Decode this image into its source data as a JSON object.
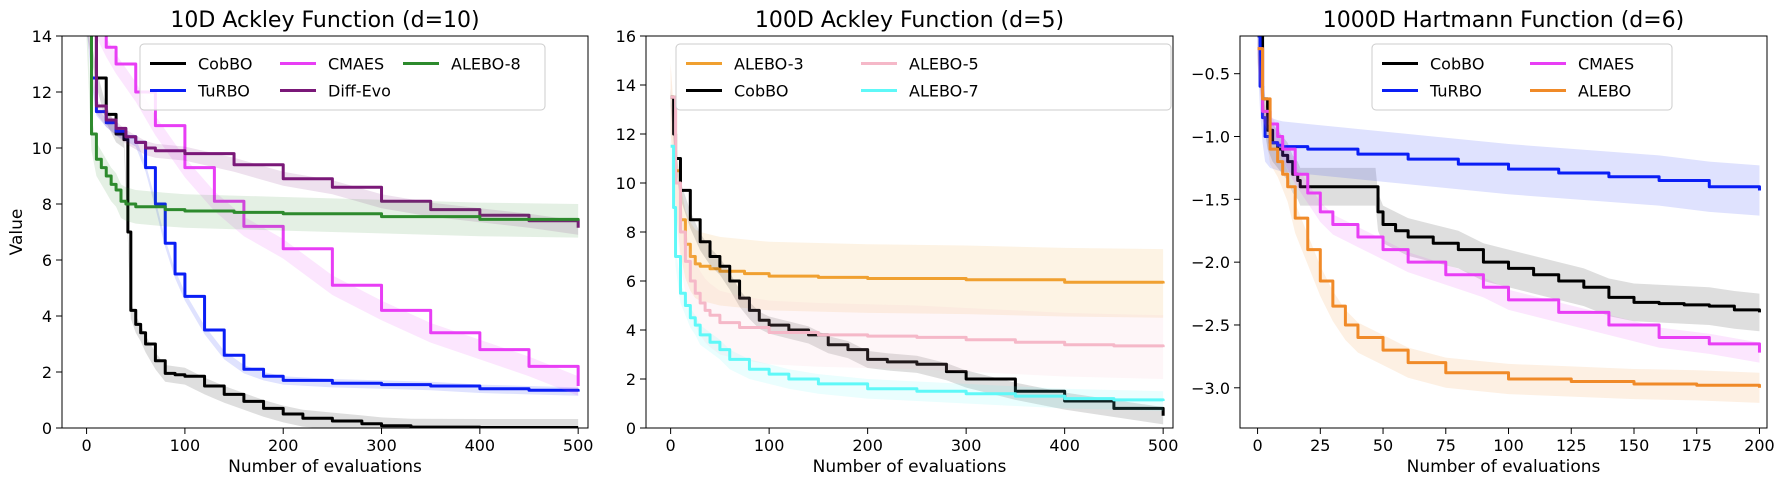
{
  "chart_data": [
    {
      "type": "line",
      "title": "10D Ackley Function (d=10)",
      "xlabel": "Number of evaluations",
      "ylabel": "Value",
      "xlim": [
        -25,
        510
      ],
      "ylim": [
        0,
        14
      ],
      "xticks": [
        0,
        100,
        200,
        300,
        400,
        500
      ],
      "yticks": [
        0,
        2,
        4,
        6,
        8,
        10,
        12,
        14
      ],
      "legend_cols": 3,
      "legend_position": "top-right",
      "series": [
        {
          "name": "CobBO",
          "color": "#000000",
          "band": 0.3,
          "x": [
            0,
            10,
            20,
            30,
            38,
            42,
            45,
            50,
            55,
            60,
            70,
            80,
            90,
            100,
            120,
            140,
            160,
            180,
            200,
            220,
            250,
            280,
            300,
            330,
            400,
            500
          ],
          "y": [
            14.5,
            12.5,
            11.2,
            10.5,
            10.3,
            7,
            4.2,
            3.7,
            3.4,
            3.0,
            2.4,
            1.95,
            1.9,
            1.85,
            1.5,
            1.2,
            0.95,
            0.7,
            0.5,
            0.35,
            0.25,
            0.15,
            0.08,
            0.03,
            0.02,
            0.02
          ]
        },
        {
          "name": "TuRBO",
          "color": "#0a1ef5",
          "band": 0.15,
          "x": [
            0,
            5,
            10,
            20,
            30,
            40,
            50,
            60,
            70,
            80,
            90,
            100,
            120,
            140,
            160,
            180,
            200,
            250,
            300,
            350,
            400,
            450,
            500
          ],
          "y": [
            14.5,
            12.5,
            11.3,
            10.9,
            10.6,
            10.4,
            10.2,
            9.3,
            8.0,
            6.6,
            5.5,
            4.7,
            3.5,
            2.6,
            2.1,
            1.85,
            1.7,
            1.6,
            1.55,
            1.5,
            1.4,
            1.35,
            1.3
          ]
        },
        {
          "name": "CMAES",
          "color": "#e83ef5",
          "band": 0.35,
          "x": [
            0,
            10,
            20,
            30,
            50,
            70,
            100,
            130,
            160,
            200,
            250,
            300,
            350,
            400,
            450,
            500
          ],
          "y": [
            15,
            14.3,
            13.6,
            13.0,
            12.0,
            10.8,
            9.3,
            8.1,
            7.2,
            6.4,
            5.1,
            4.2,
            3.4,
            2.8,
            2.2,
            1.5
          ]
        },
        {
          "name": "Diff-Evo",
          "color": "#7a1878",
          "band": 0.25,
          "x": [
            0,
            10,
            20,
            30,
            40,
            50,
            60,
            70,
            100,
            150,
            200,
            250,
            300,
            350,
            400,
            450,
            500
          ],
          "y": [
            14.5,
            11.5,
            11.0,
            10.7,
            10.4,
            10.2,
            10.0,
            9.9,
            9.8,
            9.4,
            8.9,
            8.6,
            8.1,
            7.8,
            7.6,
            7.4,
            7.15
          ]
        },
        {
          "name": "ALEBO-8",
          "color": "#2d8a2d",
          "band": 0.6,
          "x": [
            0,
            5,
            10,
            15,
            20,
            25,
            30,
            35,
            40,
            50,
            80,
            100,
            150,
            200,
            300,
            400,
            500
          ],
          "y": [
            14.5,
            10.5,
            9.6,
            9.3,
            9.0,
            8.7,
            8.5,
            8.1,
            8.0,
            7.9,
            7.8,
            7.75,
            7.7,
            7.65,
            7.55,
            7.45,
            7.4
          ]
        }
      ]
    },
    {
      "type": "line",
      "title": "100D Ackley Function (d=5)",
      "xlabel": "Number of evaluations",
      "ylabel": "",
      "xlim": [
        -25,
        510
      ],
      "ylim": [
        0,
        16
      ],
      "xticks": [
        0,
        100,
        200,
        300,
        400,
        500
      ],
      "yticks": [
        0,
        2,
        4,
        6,
        8,
        10,
        12,
        14,
        16
      ],
      "legend_cols": 3,
      "legend_position": "top",
      "series": [
        {
          "name": "ALEBO-3",
          "color": "#f0a030",
          "band": 1.4,
          "x": [
            0,
            5,
            10,
            15,
            20,
            25,
            30,
            40,
            50,
            75,
            100,
            150,
            200,
            300,
            400,
            500
          ],
          "y": [
            13.5,
            10.5,
            8.5,
            7.5,
            7.0,
            6.7,
            6.6,
            6.5,
            6.4,
            6.3,
            6.2,
            6.15,
            6.1,
            6.05,
            5.95,
            5.9
          ]
        },
        {
          "name": "CobBO",
          "color": "#000000",
          "band": 0.35,
          "x": [
            0,
            3,
            5,
            10,
            20,
            30,
            40,
            50,
            60,
            70,
            80,
            90,
            100,
            120,
            140,
            160,
            180,
            200,
            220,
            250,
            280,
            300,
            350,
            400,
            450,
            500
          ],
          "y": [
            13.5,
            12.0,
            11.0,
            9.7,
            8.5,
            7.6,
            7.0,
            6.6,
            6.0,
            5.3,
            4.8,
            4.4,
            4.2,
            4.0,
            3.8,
            3.4,
            3.2,
            2.8,
            2.7,
            2.6,
            2.3,
            2.0,
            1.5,
            1.1,
            0.8,
            0.5
          ]
        },
        {
          "name": "ALEBO-5",
          "color": "#f5b8c8",
          "band": 1.3,
          "x": [
            0,
            5,
            10,
            15,
            20,
            25,
            30,
            35,
            40,
            50,
            70,
            100,
            150,
            200,
            250,
            300,
            350,
            400,
            450,
            500
          ],
          "y": [
            13.5,
            10.0,
            8.0,
            6.8,
            6.0,
            5.5,
            5.1,
            4.8,
            4.6,
            4.3,
            4.1,
            3.9,
            3.8,
            3.75,
            3.7,
            3.6,
            3.5,
            3.4,
            3.35,
            3.3
          ]
        },
        {
          "name": "ALEBO-7",
          "color": "#5ff8f8",
          "band": 0.4,
          "x": [
            0,
            3,
            5,
            10,
            15,
            20,
            25,
            30,
            40,
            50,
            60,
            80,
            100,
            120,
            150,
            200,
            250,
            300,
            350,
            400,
            450,
            500
          ],
          "y": [
            11.5,
            9.0,
            7.0,
            5.5,
            5.0,
            4.5,
            4.2,
            3.8,
            3.5,
            3.2,
            2.8,
            2.4,
            2.2,
            2.0,
            1.8,
            1.6,
            1.5,
            1.4,
            1.3,
            1.2,
            1.15,
            1.1
          ]
        }
      ]
    },
    {
      "type": "line",
      "title": "1000D Hartmann Function (d=6)",
      "xlabel": "Number of evaluations",
      "ylabel": "",
      "xlim": [
        -7,
        203
      ],
      "ylim": [
        -3.32,
        -0.2
      ],
      "xticks": [
        0,
        25,
        50,
        75,
        100,
        125,
        150,
        175,
        200
      ],
      "yticks": [
        -3.0,
        -2.5,
        -2.0,
        -1.5,
        -1.0,
        -0.5
      ],
      "legend_cols": 2,
      "legend_position": "top",
      "series": [
        {
          "name": "CobBO",
          "color": "#000000",
          "band": 0.15,
          "x": [
            0,
            2,
            4,
            6,
            8,
            10,
            12,
            14,
            16,
            17,
            20,
            25,
            30,
            35,
            40,
            47,
            48,
            50,
            55,
            60,
            70,
            80,
            90,
            100,
            110,
            120,
            130,
            140,
            150,
            160,
            170,
            180,
            190,
            200
          ],
          "y": [
            -0.2,
            -0.7,
            -0.95,
            -1.05,
            -1.1,
            -1.15,
            -1.2,
            -1.3,
            -1.35,
            -1.4,
            -1.4,
            -1.4,
            -1.4,
            -1.4,
            -1.4,
            -1.4,
            -1.6,
            -1.7,
            -1.75,
            -1.8,
            -1.85,
            -1.9,
            -2.0,
            -2.05,
            -2.1,
            -2.15,
            -2.2,
            -2.28,
            -2.32,
            -2.33,
            -2.34,
            -2.35,
            -2.38,
            -2.4
          ]
        },
        {
          "name": "TuRBO",
          "color": "#0a1ef5",
          "band": 0.2,
          "x": [
            0,
            1,
            2,
            3,
            5,
            8,
            10,
            20,
            40,
            60,
            80,
            100,
            120,
            140,
            160,
            180,
            200
          ],
          "y": [
            -0.2,
            -0.6,
            -0.85,
            -1.0,
            -1.05,
            -1.07,
            -1.08,
            -1.1,
            -1.14,
            -1.18,
            -1.22,
            -1.26,
            -1.29,
            -1.32,
            -1.35,
            -1.4,
            -1.43
          ]
        },
        {
          "name": "CMAES",
          "color": "#e83ef5",
          "band": 0.08,
          "x": [
            0,
            2,
            5,
            8,
            10,
            15,
            20,
            25,
            30,
            40,
            50,
            60,
            75,
            90,
            100,
            120,
            140,
            160,
            180,
            200
          ],
          "y": [
            -0.3,
            -0.8,
            -0.9,
            -1.0,
            -1.1,
            -1.3,
            -1.45,
            -1.6,
            -1.7,
            -1.8,
            -1.9,
            -2.0,
            -2.1,
            -2.2,
            -2.3,
            -2.4,
            -2.5,
            -2.6,
            -2.65,
            -2.72
          ]
        },
        {
          "name": "ALEBO",
          "color": "#f08a28",
          "band": 0.12,
          "x": [
            0,
            2,
            5,
            8,
            10,
            12,
            15,
            20,
            25,
            30,
            35,
            40,
            50,
            60,
            75,
            100,
            125,
            150,
            175,
            200
          ],
          "y": [
            -0.3,
            -0.7,
            -1.1,
            -1.2,
            -1.3,
            -1.4,
            -1.65,
            -1.9,
            -2.15,
            -2.35,
            -2.5,
            -2.6,
            -2.7,
            -2.8,
            -2.88,
            -2.93,
            -2.95,
            -2.97,
            -2.98,
            -3.0
          ]
        }
      ]
    }
  ]
}
